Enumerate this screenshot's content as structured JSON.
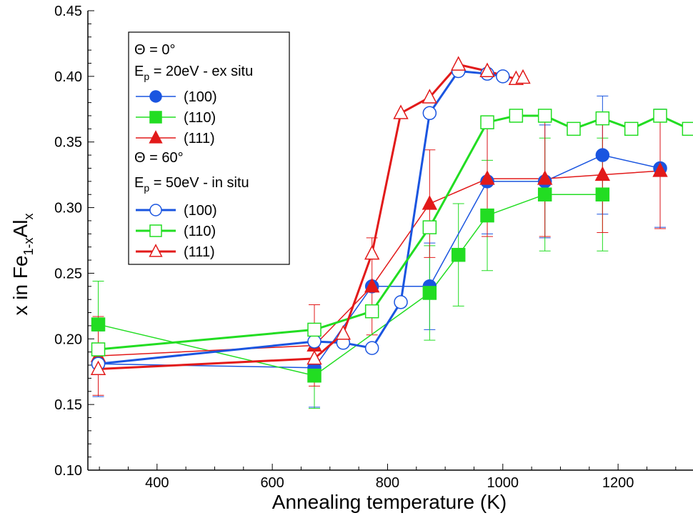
{
  "chart_data": {
    "type": "line",
    "xlabel": "Annealing temperature (K)",
    "ylabel": {
      "base": "x in Fe",
      "sub1": "1-x",
      "mid": "Al",
      "sub2": "x"
    },
    "xlim": [
      280,
      1330
    ],
    "ylim": [
      0.1,
      0.45
    ],
    "x_ticks": [
      400,
      600,
      800,
      1000,
      1200
    ],
    "x_tick_labels": [
      "400",
      "600",
      "800",
      "1000",
      "1200"
    ],
    "y_ticks": [
      0.1,
      0.15,
      0.2,
      0.25,
      0.3,
      0.35,
      0.4,
      0.45
    ],
    "y_tick_labels": [
      "0.10",
      "0.15",
      "0.20",
      "0.25",
      "0.30",
      "0.35",
      "0.40",
      "0.45"
    ],
    "legend": {
      "position": "top-left",
      "group1_line1": "Θ   = 0°",
      "group1_line2": {
        "pre": "E",
        "sub": "p",
        "post": " = 20eV - ex situ"
      },
      "group2_line1": "Θ   = 60°",
      "group2_line2": {
        "pre": "E",
        "sub": "p",
        "post": " = 50eV - in situ"
      }
    },
    "series": [
      {
        "name": "(100)",
        "color": "#1a55e0",
        "marker": "circle",
        "filled": true,
        "width": 1.5,
        "x": [
          298,
          673,
          773,
          873,
          973,
          1073,
          1173,
          1273
        ],
        "y": [
          0.181,
          0.178,
          0.24,
          0.24,
          0.32,
          0.32,
          0.34,
          0.33
        ],
        "err": [
          0.025,
          0.03,
          0.0,
          0.033,
          0.04,
          0.043,
          0.045,
          0.045
        ]
      },
      {
        "name": "(110)",
        "color": "#22dd22",
        "marker": "square",
        "filled": true,
        "width": 1.5,
        "x": [
          298,
          673,
          873,
          923,
          973,
          1073,
          1173
        ],
        "y": [
          0.211,
          0.172,
          0.235,
          0.264,
          0.294,
          0.31,
          0.31
        ],
        "err": [
          0.033,
          0.025,
          0.036,
          0.039,
          0.042,
          0.043,
          0.043
        ]
      },
      {
        "name": "(111)",
        "color": "#e21a1a",
        "marker": "triangle",
        "filled": true,
        "width": 1.5,
        "x": [
          298,
          673,
          773,
          873,
          973,
          1073,
          1173,
          1273
        ],
        "y": [
          0.187,
          0.195,
          0.24,
          0.303,
          0.322,
          0.322,
          0.325,
          0.328
        ],
        "err": [
          0.03,
          0.031,
          0.037,
          0.041,
          0.044,
          0.044,
          0.044,
          0.044
        ]
      },
      {
        "name": "(100)",
        "color": "#1a55e0",
        "marker": "circle",
        "filled": false,
        "width": 3,
        "x": [
          298,
          673,
          723,
          773,
          823,
          873,
          923,
          973,
          1000
        ],
        "y": [
          0.181,
          0.198,
          0.197,
          0.193,
          0.228,
          0.372,
          0.404,
          0.402,
          0.4
        ],
        "err": []
      },
      {
        "name": "(110)",
        "color": "#22dd22",
        "marker": "square",
        "filled": false,
        "width": 3,
        "x": [
          298,
          673,
          773,
          873,
          973,
          1023,
          1073,
          1123,
          1173,
          1223,
          1273,
          1323
        ],
        "y": [
          0.192,
          0.207,
          0.221,
          0.285,
          0.365,
          0.37,
          0.37,
          0.36,
          0.368,
          0.36,
          0.37,
          0.36
        ],
        "err": []
      },
      {
        "name": "(111)",
        "color": "#e21a1a",
        "marker": "triangle",
        "filled": false,
        "width": 3,
        "x": [
          298,
          673,
          723,
          773,
          823,
          873,
          923,
          973,
          1023,
          1035
        ],
        "y": [
          0.177,
          0.185,
          0.204,
          0.265,
          0.372,
          0.384,
          0.409,
          0.404,
          0.398,
          0.399
        ],
        "err": []
      }
    ]
  }
}
